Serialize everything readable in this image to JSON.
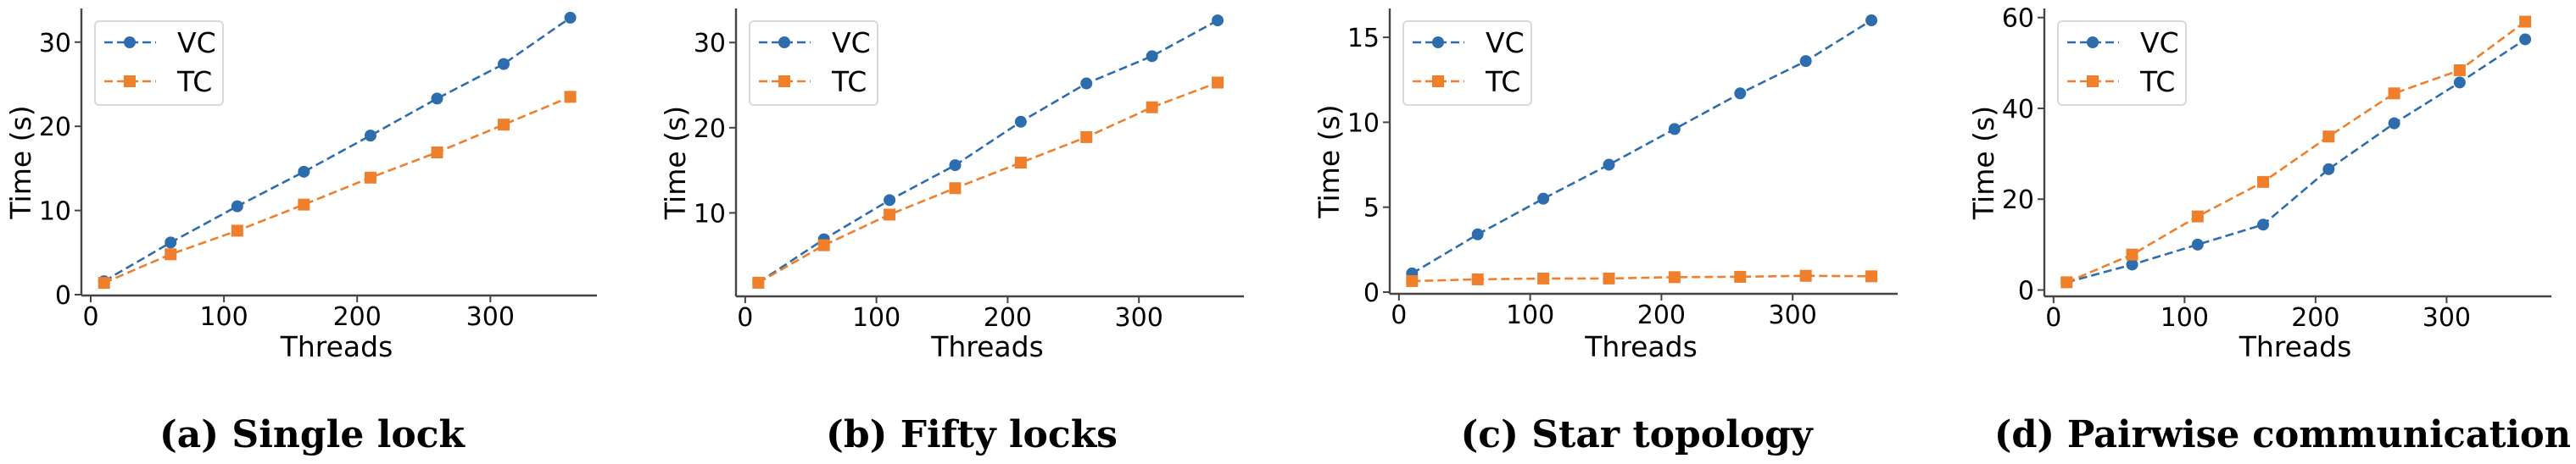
{
  "colors": {
    "vc": "#2e6dad",
    "tc": "#ef7f2b",
    "axis": "#444444",
    "legend_border": "#d9d9d9"
  },
  "chart_data": [
    {
      "type": "line",
      "caption": "(a) Single lock",
      "xlabel": "Threads",
      "ylabel": "Time (s)",
      "x": [
        10,
        60,
        110,
        160,
        210,
        260,
        310,
        360
      ],
      "xticks": [
        0,
        100,
        200,
        300
      ],
      "xtick_labels": [
        "0",
        "100",
        "200",
        "300"
      ],
      "yticks": [
        0,
        10,
        20,
        30
      ],
      "ytick_labels": [
        "0",
        "10",
        "20",
        "30"
      ],
      "xlim": [
        -7,
        380
      ],
      "ylim": [
        -0.1,
        34.0
      ],
      "grid": false,
      "legend_position": "top-left",
      "series": [
        {
          "name": "VC",
          "marker": "circle",
          "line": "dashed",
          "values": [
            1.6,
            6.2,
            10.5,
            14.6,
            18.9,
            23.3,
            27.4,
            32.9
          ]
        },
        {
          "name": "TC",
          "marker": "square",
          "line": "dashed",
          "values": [
            1.4,
            4.8,
            7.6,
            10.7,
            13.9,
            16.9,
            20.2,
            23.5
          ]
        }
      ]
    },
    {
      "type": "line",
      "caption": "(b) Fifty locks",
      "xlabel": "Threads",
      "ylabel": "Time (s)",
      "x": [
        10,
        60,
        110,
        160,
        210,
        260,
        310,
        360
      ],
      "xticks": [
        0,
        100,
        200,
        300
      ],
      "xtick_labels": [
        "0",
        "100",
        "200",
        "300"
      ],
      "yticks": [
        10,
        20,
        30
      ],
      "ytick_labels": [
        "10",
        "20",
        "30"
      ],
      "xlim": [
        -7,
        380
      ],
      "ylim": [
        0.2,
        34.0
      ],
      "grid": false,
      "legend_position": "top-left",
      "series": [
        {
          "name": "VC",
          "marker": "circle",
          "line": "dashed",
          "values": [
            1.8,
            6.9,
            11.5,
            15.6,
            20.7,
            25.2,
            28.4,
            32.6
          ]
        },
        {
          "name": "TC",
          "marker": "square",
          "line": "dashed",
          "values": [
            1.8,
            6.2,
            9.8,
            12.9,
            15.9,
            18.9,
            22.4,
            25.3
          ]
        }
      ]
    },
    {
      "type": "line",
      "caption": "(c) Star topology",
      "xlabel": "Threads",
      "ylabel": "Time (s)",
      "x": [
        10,
        60,
        110,
        160,
        210,
        260,
        310,
        360
      ],
      "xticks": [
        0,
        100,
        200,
        300
      ],
      "xtick_labels": [
        "0",
        "100",
        "200",
        "300"
      ],
      "yticks": [
        0,
        5,
        10,
        15
      ],
      "ytick_labels": [
        "0",
        "5",
        "10",
        "15"
      ],
      "xlim": [
        -7,
        380
      ],
      "ylim": [
        -0.1,
        16.7
      ],
      "grid": false,
      "legend_position": "top-left",
      "series": [
        {
          "name": "VC",
          "marker": "circle",
          "line": "dashed",
          "values": [
            1.1,
            3.4,
            5.5,
            7.5,
            9.6,
            11.7,
            13.6,
            16.0
          ]
        },
        {
          "name": "TC",
          "marker": "square",
          "line": "dashed",
          "values": [
            0.65,
            0.75,
            0.8,
            0.8,
            0.88,
            0.9,
            0.96,
            0.93
          ]
        }
      ]
    },
    {
      "type": "line",
      "caption": "(d) Pairwise communication",
      "xlabel": "Threads",
      "ylabel": "Time (s)",
      "x": [
        10,
        60,
        110,
        160,
        210,
        260,
        310,
        360
      ],
      "xticks": [
        0,
        100,
        200,
        300
      ],
      "xtick_labels": [
        "0",
        "100",
        "200",
        "300"
      ],
      "yticks": [
        0,
        20,
        40,
        60
      ],
      "ytick_labels": [
        "0",
        "20",
        "40",
        "60"
      ],
      "xlim": [
        -7,
        380
      ],
      "ylim": [
        -1.4,
        62.0
      ],
      "grid": false,
      "legend_position": "top-left",
      "series": [
        {
          "name": "VC",
          "marker": "circle",
          "line": "dashed",
          "values": [
            1.7,
            5.6,
            10.0,
            14.4,
            26.6,
            36.7,
            45.7,
            55.2
          ]
        },
        {
          "name": "TC",
          "marker": "square",
          "line": "dashed",
          "values": [
            1.7,
            7.8,
            16.2,
            23.8,
            33.8,
            43.3,
            48.4,
            59.1
          ]
        }
      ]
    }
  ]
}
